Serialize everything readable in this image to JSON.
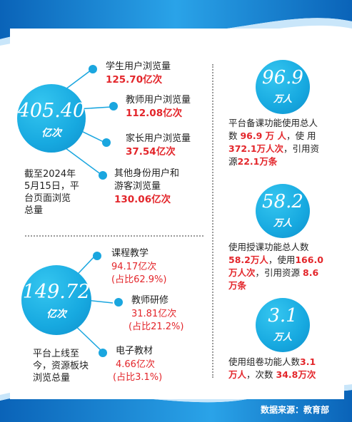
{
  "total": {
    "number": "405.40",
    "unit": "亿次",
    "note": [
      "截至2024年",
      "5月15日，平",
      "台页面浏览",
      "总量"
    ],
    "items": [
      {
        "label": "学生用户浏览量",
        "value": "125.70亿次"
      },
      {
        "label": "教师用户浏览量",
        "value": "112.08亿次"
      },
      {
        "label": "家长用户浏览量",
        "value": "37.54亿次"
      },
      {
        "label": "其他身份用户和",
        "label2": "游客浏览量",
        "value": "130.06亿次"
      }
    ]
  },
  "resources": {
    "number": "149.72",
    "unit": "亿次",
    "note": [
      "平台上线至",
      "今，资源板块",
      "浏览总量"
    ],
    "items": [
      {
        "label": "课程教学",
        "value": "94.17亿次",
        "share": "(占比62.9%)"
      },
      {
        "label": "教师研修",
        "value": "31.81亿次",
        "share": "(占比21.2%)"
      },
      {
        "label": "电子教材",
        "value": "4.66亿次",
        "share": "(占比3.1%)"
      }
    ]
  },
  "stats": [
    {
      "number": "96.9",
      "unit": "万人",
      "lines": [
        [
          "平台备课功能使用总人"
        ],
        [
          "数 ",
          {
            "red": "96.9 万 人"
          },
          "，使 用"
        ],
        [
          {
            "red": "372.1万人次"
          },
          "，引用资"
        ],
        [
          "源",
          {
            "red": "22.1万条"
          }
        ]
      ]
    },
    {
      "number": "58.2",
      "unit": "万人",
      "lines": [
        [
          "使用授课功能总人数"
        ],
        [
          {
            "red": "58.2万人"
          },
          "，使用",
          {
            "red": "166.0"
          }
        ],
        [
          {
            "red": "万人次"
          },
          "，引用资源 ",
          {
            "red": "8.6"
          }
        ],
        [
          {
            "red": "万条"
          }
        ]
      ]
    },
    {
      "number": "3.1",
      "unit": "万人",
      "lines": [
        [
          "使用组卷功能人数",
          {
            "red": "3.1"
          }
        ],
        [
          {
            "red": "万人"
          },
          "，次数 ",
          {
            "red": "34.8万次"
          }
        ]
      ]
    }
  ],
  "source": "数据来源：教育部",
  "colors": {
    "accent": "#17a9e0",
    "highlight": "#e3262b",
    "band": "#0f7fd0"
  }
}
